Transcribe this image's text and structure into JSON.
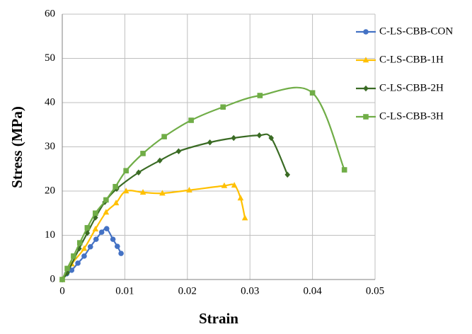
{
  "chart_data": {
    "type": "line",
    "x_label": "Strain",
    "y_label": "Stress (MPa)",
    "xlim": [
      0,
      0.05
    ],
    "xticks": [
      0,
      0.01,
      0.02,
      0.03,
      0.04,
      0.05
    ],
    "ylim": [
      0,
      60
    ],
    "yticks": [
      0,
      10,
      20,
      30,
      40,
      50,
      60
    ],
    "grid": true,
    "smooth": true,
    "legend": "right",
    "series": [
      {
        "name": "C-LS-CBB-CON",
        "color": "#4472c4",
        "marker": "circle",
        "x": [
          0,
          0.0007,
          0.0015,
          0.0025,
          0.0035,
          0.0045,
          0.0054,
          0.0063,
          0.0071,
          0.0081,
          0.0088,
          0.0094
        ],
        "values": [
          0,
          1.3,
          2.1,
          3.7,
          5.3,
          7.4,
          9.1,
          10.7,
          11.5,
          9.1,
          7.5,
          5.9
        ]
      },
      {
        "name": "C-LS-CBB-1H",
        "color": "#ffc000",
        "marker": "triangle",
        "x": [
          0,
          0.0015,
          0.0035,
          0.0053,
          0.007,
          0.0086,
          0.0102,
          0.0129,
          0.016,
          0.0203,
          0.0259,
          0.0275,
          0.0285,
          0.0292
        ],
        "values": [
          0,
          3.5,
          7,
          11.4,
          15.2,
          17.3,
          20,
          19.7,
          19.5,
          20.2,
          21.2,
          21.3,
          18.4,
          13.9
        ]
      },
      {
        "name": "C-LS-CBB-2H",
        "color": "#3a6b24",
        "marker": "diamond",
        "x": [
          0,
          0.0008,
          0.0027,
          0.004,
          0.0053,
          0.0068,
          0.0087,
          0.0122,
          0.0156,
          0.0186,
          0.0236,
          0.0274,
          0.0315,
          0.0334,
          0.036
        ],
        "values": [
          0,
          1.5,
          7,
          10.5,
          14,
          17.5,
          20.5,
          24.2,
          26.9,
          29,
          31,
          32,
          32.6,
          32,
          23.7
        ]
      },
      {
        "name": "C-LS-CBB-3H",
        "color": "#70ad47",
        "marker": "square",
        "x": [
          0,
          0.0008,
          0.0018,
          0.0028,
          0.004,
          0.0053,
          0.007,
          0.0085,
          0.0102,
          0.0129,
          0.0163,
          0.0206,
          0.0257,
          0.0316,
          0.04,
          0.0451
        ],
        "values": [
          0,
          2.5,
          5.3,
          8.3,
          11.7,
          15,
          18,
          21,
          24.6,
          28.5,
          32.3,
          36,
          39,
          41.6,
          42.2,
          24.8
        ]
      }
    ]
  }
}
